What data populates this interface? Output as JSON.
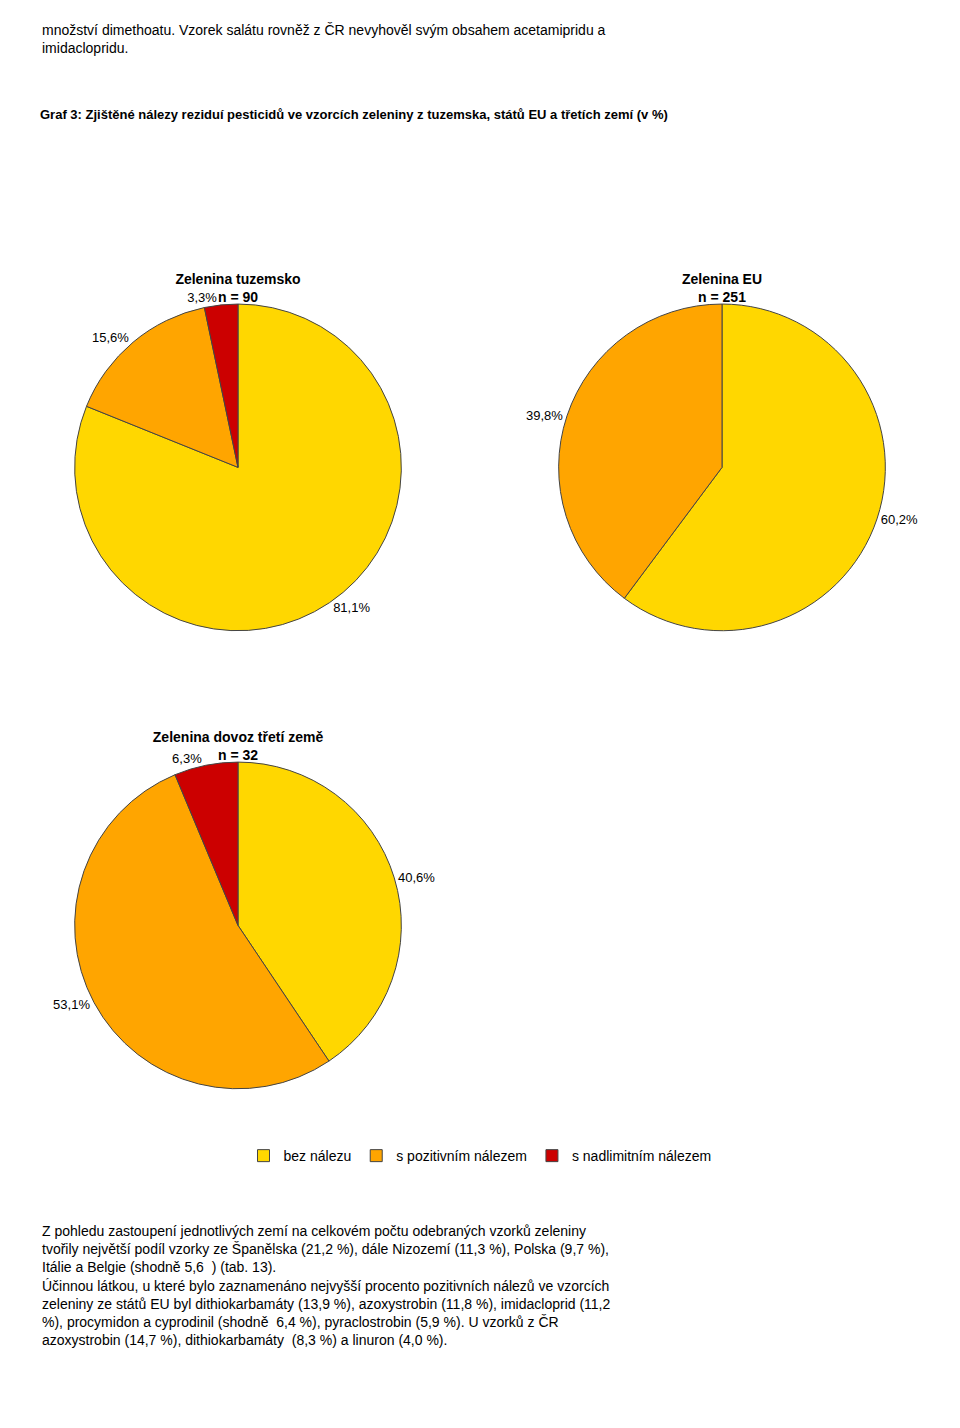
{
  "title": "Graf 3: Zjištěné nálezy reziduí pesticidů ve vzorcích zeleniny z tuzemska, států EU a třetích zemí (v %)",
  "annotations": [
    "množství dimethoatu. Vzorek salátu rovněž z ČR nevyhověl svým obsahem acetamipridu a\nimidaclopridu.",
    "Z pohledu zastoupení jednotlivých zemí na celkovém počtu odebraných vzorků zeleniny\ntvořily největší podíl vzorky ze Španělska (21,2 %), dále Nizozemí (11,3 %), Polska (9,7 %),\nItálie a Belgie (shodně 5,6  ) (tab. 13).\nÚčinnou látkou, u které bylo zaznamenáno nejvyšší procento pozitivních nálezů ve vzorcích\nzeleniny ze států EU byl dithiokarbamáty (13,9 %), azoxystrobin (11,8 %), imidacloprid (11,2\n%), procymidon a cyprodinil (shodně  6,4 %), pyraclostrobin (5,9 %). U vzorků z ČR\nazoxystrobin (14,7 %), dithiokarbamáty  (8,3 %) a linuron (4,0 %)."
  ],
  "chart_data": [
    {
      "type": "pie",
      "title": "Zelenina tuzemsko",
      "subtitle": "n = 90",
      "categories": [
        "bez nálezu",
        "s pozitivním nálezem",
        "s nadlimitním nálezem"
      ],
      "values": [
        81.1,
        15.6,
        3.3
      ],
      "value_labels": [
        "81,1%",
        "15,6%",
        "3,3%"
      ],
      "colors": [
        "#FFD700",
        "#FFA500",
        "#CC0000"
      ],
      "data_labels": true,
      "legend": "bottom"
    },
    {
      "type": "pie",
      "title": "Zelenina EU",
      "subtitle": "n = 251",
      "categories": [
        "bez nálezu",
        "s pozitivním nálezem"
      ],
      "values": [
        60.2,
        39.8
      ],
      "value_labels": [
        "60,2%",
        "39,8%"
      ],
      "colors": [
        "#FFD700",
        "#FFA500"
      ],
      "data_labels": true,
      "legend": "bottom"
    },
    {
      "type": "pie",
      "title": "Zelenina dovoz třetí země",
      "subtitle": "n = 32",
      "categories": [
        "bez nálezu",
        "s pozitivním nálezem",
        "s nadlimitním nálezem"
      ],
      "values": [
        40.6,
        53.1,
        6.3
      ],
      "value_labels": [
        "40,6%",
        "53,1%",
        "6,3%"
      ],
      "colors": [
        "#FFD700",
        "#FFA500",
        "#CC0000"
      ],
      "data_labels": true,
      "legend": "bottom"
    }
  ]
}
